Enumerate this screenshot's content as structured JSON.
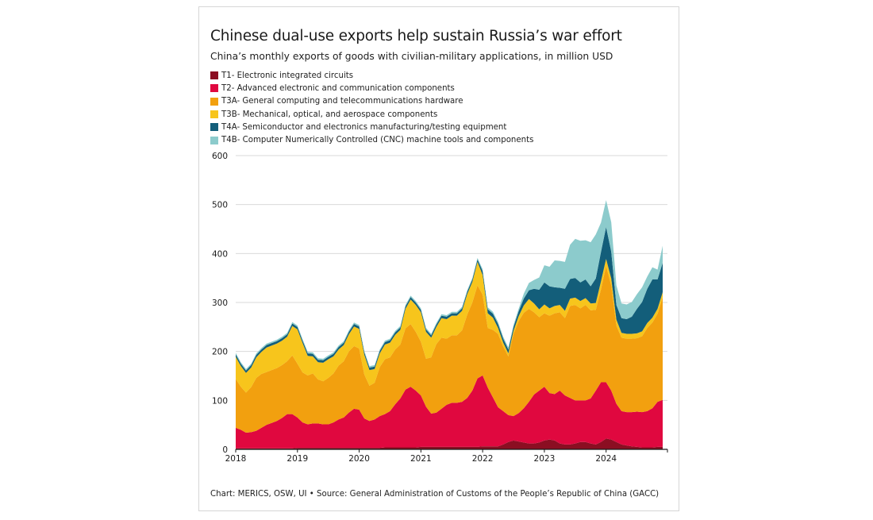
{
  "title": "Chinese dual-use exports help sustain Russia’s war effort",
  "subtitle": "China’s monthly exports of goods with civilian-military applications, in million USD",
  "source": "Chart: MERICS, OSW, UI • Source: General Administration of Customs of the People’s Republic of China (GACC)",
  "chart_data": {
    "type": "area",
    "stacked": true,
    "legend_position": "top-left",
    "grid": "horizontal",
    "ylim": [
      0,
      600
    ],
    "yticks": [
      0,
      100,
      200,
      300,
      400,
      500,
      600
    ],
    "xlim": [
      "2018-01",
      "2024-12"
    ],
    "xticks": [
      "2018",
      "2019",
      "2020",
      "2021",
      "2022",
      "2023",
      "2024"
    ],
    "x": [
      "2018-01",
      "2018-02",
      "2018-03",
      "2018-04",
      "2018-05",
      "2018-06",
      "2018-07",
      "2018-08",
      "2018-09",
      "2018-10",
      "2018-11",
      "2018-12",
      "2019-01",
      "2019-02",
      "2019-03",
      "2019-04",
      "2019-05",
      "2019-06",
      "2019-07",
      "2019-08",
      "2019-09",
      "2019-10",
      "2019-11",
      "2019-12",
      "2020-01",
      "2020-02",
      "2020-03",
      "2020-04",
      "2020-05",
      "2020-06",
      "2020-07",
      "2020-08",
      "2020-09",
      "2020-10",
      "2020-11",
      "2020-12",
      "2021-01",
      "2021-02",
      "2021-03",
      "2021-04",
      "2021-05",
      "2021-06",
      "2021-07",
      "2021-08",
      "2021-09",
      "2021-10",
      "2021-11",
      "2021-12",
      "2022-01",
      "2022-02",
      "2022-03",
      "2022-04",
      "2022-05",
      "2022-06",
      "2022-07",
      "2022-08",
      "2022-09",
      "2022-10",
      "2022-11",
      "2022-12",
      "2023-01",
      "2023-02",
      "2023-03",
      "2023-04",
      "2023-05",
      "2023-06",
      "2023-07",
      "2023-08",
      "2023-09",
      "2023-10",
      "2023-11",
      "2023-12",
      "2024-01",
      "2024-02",
      "2024-03",
      "2024-04",
      "2024-05",
      "2024-06",
      "2024-07",
      "2024-08",
      "2024-09",
      "2024-10",
      "2024-11",
      "2024-12"
    ],
    "series": [
      {
        "name": "T1- Electronic integrated circuits",
        "color": "#8b0e22",
        "values": [
          2,
          2,
          2,
          2,
          2,
          2,
          2,
          2,
          2,
          2,
          2,
          2,
          3,
          3,
          3,
          3,
          3,
          3,
          3,
          3,
          3,
          3,
          3,
          3,
          3,
          3,
          3,
          3,
          3,
          4,
          4,
          4,
          4,
          4,
          4,
          4,
          5,
          5,
          5,
          5,
          5,
          5,
          5,
          5,
          5,
          5,
          5,
          5,
          6,
          6,
          6,
          6,
          10,
          15,
          18,
          16,
          14,
          12,
          12,
          14,
          18,
          20,
          18,
          12,
          10,
          10,
          12,
          15,
          15,
          12,
          10,
          15,
          22,
          20,
          15,
          10,
          8,
          6,
          5,
          4,
          4,
          4,
          5,
          5
        ]
      },
      {
        "name": "T2- Advanced electronic and communication components",
        "color": "#e0083f",
        "values": [
          42,
          38,
          32,
          33,
          36,
          42,
          48,
          52,
          56,
          62,
          70,
          70,
          62,
          52,
          48,
          50,
          50,
          48,
          48,
          52,
          58,
          62,
          72,
          80,
          78,
          60,
          55,
          58,
          65,
          68,
          74,
          88,
          100,
          118,
          124,
          116,
          105,
          82,
          68,
          70,
          78,
          86,
          90,
          90,
          92,
          100,
          115,
          140,
          145,
          120,
          100,
          80,
          68,
          55,
          50,
          58,
          70,
          85,
          100,
          106,
          110,
          95,
          95,
          108,
          100,
          95,
          88,
          85,
          85,
          92,
          110,
          122,
          115,
          100,
          78,
          68,
          68,
          70,
          72,
          72,
          74,
          80,
          92,
          96
        ]
      },
      {
        "name": "T3A- General computing and telecommunications hardware",
        "color": "#f2a00f",
        "values": [
          100,
          88,
          82,
          92,
          108,
          110,
          108,
          108,
          108,
          108,
          108,
          120,
          110,
          102,
          100,
          102,
          90,
          88,
          95,
          100,
          110,
          115,
          125,
          128,
          125,
          90,
          72,
          75,
          100,
          112,
          110,
          112,
          110,
          125,
          128,
          120,
          110,
          98,
          115,
          140,
          145,
          135,
          138,
          138,
          146,
          170,
          180,
          190,
          165,
          122,
          138,
          150,
          132,
          120,
          168,
          188,
          195,
          190,
          168,
          150,
          150,
          158,
          165,
          160,
          158,
          188,
          195,
          188,
          195,
          180,
          165,
          190,
          238,
          215,
          160,
          150,
          150,
          150,
          150,
          155,
          170,
          175,
          180,
          210
        ]
      },
      {
        "name": "T3B- Mechanical, optical, and aerospace components",
        "color": "#f7c51c",
        "values": [
          45,
          42,
          40,
          40,
          42,
          45,
          50,
          50,
          50,
          50,
          50,
          60,
          70,
          60,
          40,
          35,
          35,
          38,
          38,
          35,
          33,
          33,
          35,
          40,
          40,
          40,
          32,
          28,
          28,
          30,
          30,
          30,
          30,
          40,
          50,
          55,
          60,
          55,
          40,
          35,
          40,
          40,
          40,
          40,
          40,
          42,
          42,
          48,
          40,
          30,
          25,
          12,
          8,
          6,
          6,
          10,
          15,
          20,
          18,
          16,
          18,
          15,
          15,
          15,
          15,
          15,
          15,
          15,
          14,
          14,
          14,
          16,
          14,
          14,
          12,
          10,
          10,
          10,
          10,
          10,
          10,
          10,
          10,
          10
        ]
      },
      {
        "name": "T4A- Semiconductor and electronics manufacturing/testing equipment",
        "color": "#135e7a",
        "values": [
          5,
          5,
          5,
          5,
          5,
          5,
          5,
          5,
          5,
          5,
          5,
          5,
          5,
          5,
          5,
          5,
          5,
          5,
          5,
          5,
          5,
          5,
          5,
          5,
          5,
          5,
          5,
          5,
          5,
          5,
          5,
          5,
          5,
          5,
          5,
          5,
          5,
          5,
          5,
          5,
          5,
          5,
          5,
          5,
          5,
          5,
          5,
          5,
          8,
          8,
          8,
          8,
          8,
          8,
          8,
          10,
          14,
          18,
          30,
          40,
          45,
          45,
          38,
          35,
          45,
          40,
          40,
          38,
          38,
          35,
          50,
          60,
          65,
          55,
          30,
          30,
          30,
          35,
          50,
          60,
          70,
          78,
          60,
          60
        ]
      },
      {
        "name": "T4B- Computer Numerically Controlled (CNC) machine tools and components",
        "color": "#8ccbcc",
        "values": [
          3,
          3,
          3,
          3,
          3,
          3,
          3,
          3,
          3,
          3,
          3,
          3,
          3,
          3,
          3,
          3,
          3,
          3,
          3,
          3,
          3,
          3,
          3,
          3,
          3,
          3,
          3,
          3,
          3,
          3,
          3,
          3,
          3,
          3,
          3,
          3,
          3,
          3,
          3,
          3,
          3,
          3,
          3,
          3,
          3,
          3,
          3,
          3,
          4,
          4,
          4,
          4,
          4,
          4,
          4,
          5,
          10,
          15,
          18,
          25,
          35,
          40,
          55,
          55,
          55,
          70,
          80,
          85,
          80,
          90,
          90,
          60,
          55,
          60,
          40,
          30,
          30,
          30,
          30,
          30,
          25,
          25,
          20,
          35
        ]
      }
    ]
  }
}
